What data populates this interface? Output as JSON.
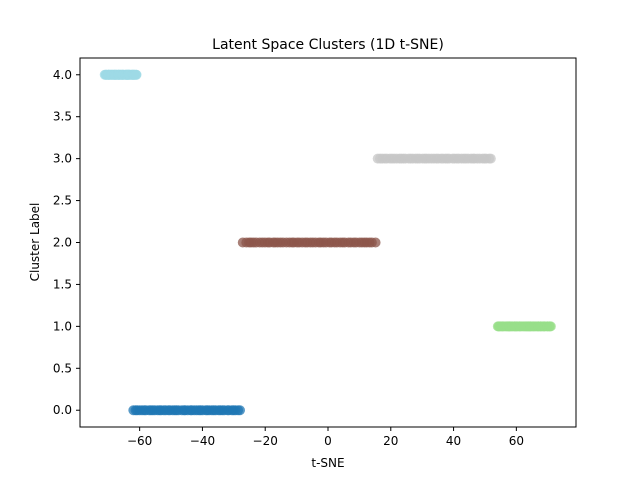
{
  "chart_data": {
    "type": "scatter",
    "title": "Latent Space Clusters (1D t-SNE)",
    "xlabel": "t-SNE",
    "ylabel": "Cluster Label",
    "xlim": [
      -79,
      79
    ],
    "ylim": [
      -0.2,
      4.2
    ],
    "xticks": [
      -60,
      -40,
      -20,
      0,
      20,
      40,
      60
    ],
    "xtick_labels": [
      "−60",
      "−40",
      "−20",
      "0",
      "20",
      "40",
      "60"
    ],
    "yticks": [
      0.0,
      0.5,
      1.0,
      1.5,
      2.0,
      2.5,
      3.0,
      3.5,
      4.0
    ],
    "ytick_labels": [
      "0.0",
      "0.5",
      "1.0",
      "1.5",
      "2.0",
      "2.5",
      "3.0",
      "3.5",
      "4.0"
    ],
    "grid": false,
    "series": [
      {
        "label_value": 0,
        "color": "#1f77b4",
        "x_min": -62,
        "x_max": -28
      },
      {
        "label_value": 1,
        "color": "#98df8a",
        "x_min": 54,
        "x_max": 71
      },
      {
        "label_value": 2,
        "color": "#8c564b",
        "x_min": -27,
        "x_max": 15
      },
      {
        "label_value": 3,
        "color": "#c7c7c7",
        "x_min": 16,
        "x_max": 52
      },
      {
        "label_value": 4,
        "color": "#9edae5",
        "x_min": -71,
        "x_max": -61
      }
    ]
  }
}
